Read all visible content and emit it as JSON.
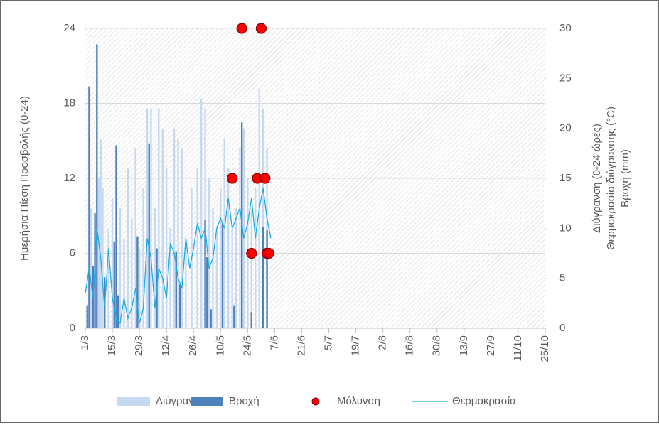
{
  "chart_data": {
    "type": "combo",
    "y_label": "Ημερήσια Πίεση Προσβολής (0-24)",
    "y2_label": [
      "Διύγρανση (0-24 ώρες)",
      "Θερμοκρασία διύγρανσης (°C)",
      "Βροχή (mm)"
    ],
    "xlim": [
      0,
      238
    ],
    "xticks": [
      {
        "value": 0,
        "label": "1/3"
      },
      {
        "value": 14,
        "label": "15/3"
      },
      {
        "value": 28,
        "label": "29/3"
      },
      {
        "value": 42,
        "label": "12/4"
      },
      {
        "value": 56,
        "label": "26/4"
      },
      {
        "value": 70,
        "label": "10/5"
      },
      {
        "value": 84,
        "label": "24/5"
      },
      {
        "value": 98,
        "label": "7/6"
      },
      {
        "value": 112,
        "label": "21/6"
      },
      {
        "value": 126,
        "label": "5/7"
      },
      {
        "value": 140,
        "label": "19/7"
      },
      {
        "value": 154,
        "label": "2/8"
      },
      {
        "value": 168,
        "label": "16/8"
      },
      {
        "value": 182,
        "label": "30/8"
      },
      {
        "value": 196,
        "label": "13/9"
      },
      {
        "value": 210,
        "label": "27/9"
      },
      {
        "value": 224,
        "label": "11/10"
      },
      {
        "value": 238,
        "label": "25/10"
      }
    ],
    "ylim": [
      0,
      24
    ],
    "yticks": [
      0,
      6,
      12,
      18,
      24
    ],
    "y2lim": [
      0,
      30
    ],
    "y2ticks": [
      0,
      5,
      10,
      15,
      20,
      25,
      30
    ],
    "grid": true,
    "series": [
      {
        "name": "Διύγρανση",
        "type": "bar",
        "color": "#c6d9f0",
        "axis": "y2",
        "x": [
          2,
          3,
          5,
          7,
          8,
          9,
          12,
          14,
          18,
          20,
          22,
          24,
          26,
          28,
          30,
          32,
          34,
          36,
          38,
          40,
          42,
          44,
          46,
          48,
          50,
          52,
          55,
          58,
          60,
          62,
          64,
          66,
          68,
          70,
          72,
          74,
          76,
          78,
          80,
          82,
          84,
          86,
          88,
          90,
          92,
          94
        ],
        "values": [
          6,
          12,
          8,
          15,
          19,
          14,
          10,
          13,
          12,
          9,
          16,
          11,
          18,
          8,
          14,
          22,
          22,
          12,
          22,
          20,
          16,
          10,
          20,
          19,
          18,
          9,
          14,
          16,
          23,
          22,
          15,
          12,
          10,
          14,
          19,
          16,
          10,
          12,
          18,
          20,
          15,
          12,
          14,
          24,
          22,
          18
        ]
      },
      {
        "name": "Βροχή",
        "type": "bar",
        "color": "#4f81bd",
        "axis": "y2",
        "x": [
          1,
          2,
          4,
          5,
          6,
          10,
          15,
          16,
          17,
          27,
          33,
          37,
          47,
          49,
          62,
          63,
          65,
          71,
          77,
          81,
          86,
          92,
          94
        ],
        "values": [
          2.3,
          24.2,
          6.2,
          11.5,
          28.4,
          5.1,
          8.7,
          18.3,
          3.3,
          9.2,
          18.5,
          8,
          7.7,
          4.4,
          10.8,
          7.1,
          1.9,
          10.5,
          2.3,
          20.6,
          1.6,
          10.1,
          9.8
        ]
      },
      {
        "name": "Μόλυνση",
        "type": "scatter",
        "color": "#ff0000",
        "axis": "y",
        "x": [
          76,
          81,
          86,
          89,
          91,
          93,
          94,
          95
        ],
        "values": [
          12,
          24,
          6,
          12,
          24,
          12,
          6,
          6
        ]
      },
      {
        "name": "Θερμοκρασία",
        "type": "line",
        "color": "#1aaee0",
        "axis": "y2",
        "x": [
          0,
          2,
          4,
          6,
          8,
          10,
          12,
          14,
          16,
          18,
          20,
          22,
          24,
          26,
          28,
          30,
          32,
          34,
          36,
          38,
          40,
          42,
          44,
          46,
          48,
          50,
          52,
          54,
          56,
          58,
          60,
          62,
          64,
          66,
          68,
          70,
          72,
          74,
          76,
          78,
          80,
          82,
          84,
          86,
          88,
          90,
          92,
          94,
          96
        ],
        "values": [
          3.5,
          6,
          3,
          10,
          7,
          2,
          8,
          3,
          1,
          0.5,
          3,
          1,
          2,
          4,
          0.5,
          2,
          9,
          7,
          2,
          6,
          5,
          3,
          8.5,
          7.5,
          5,
          4,
          9,
          6,
          8,
          10.5,
          9,
          10,
          6,
          7,
          10,
          11,
          10,
          13,
          10,
          11,
          12,
          9,
          10.5,
          13,
          9,
          12,
          14,
          11,
          9
        ]
      }
    ]
  }
}
